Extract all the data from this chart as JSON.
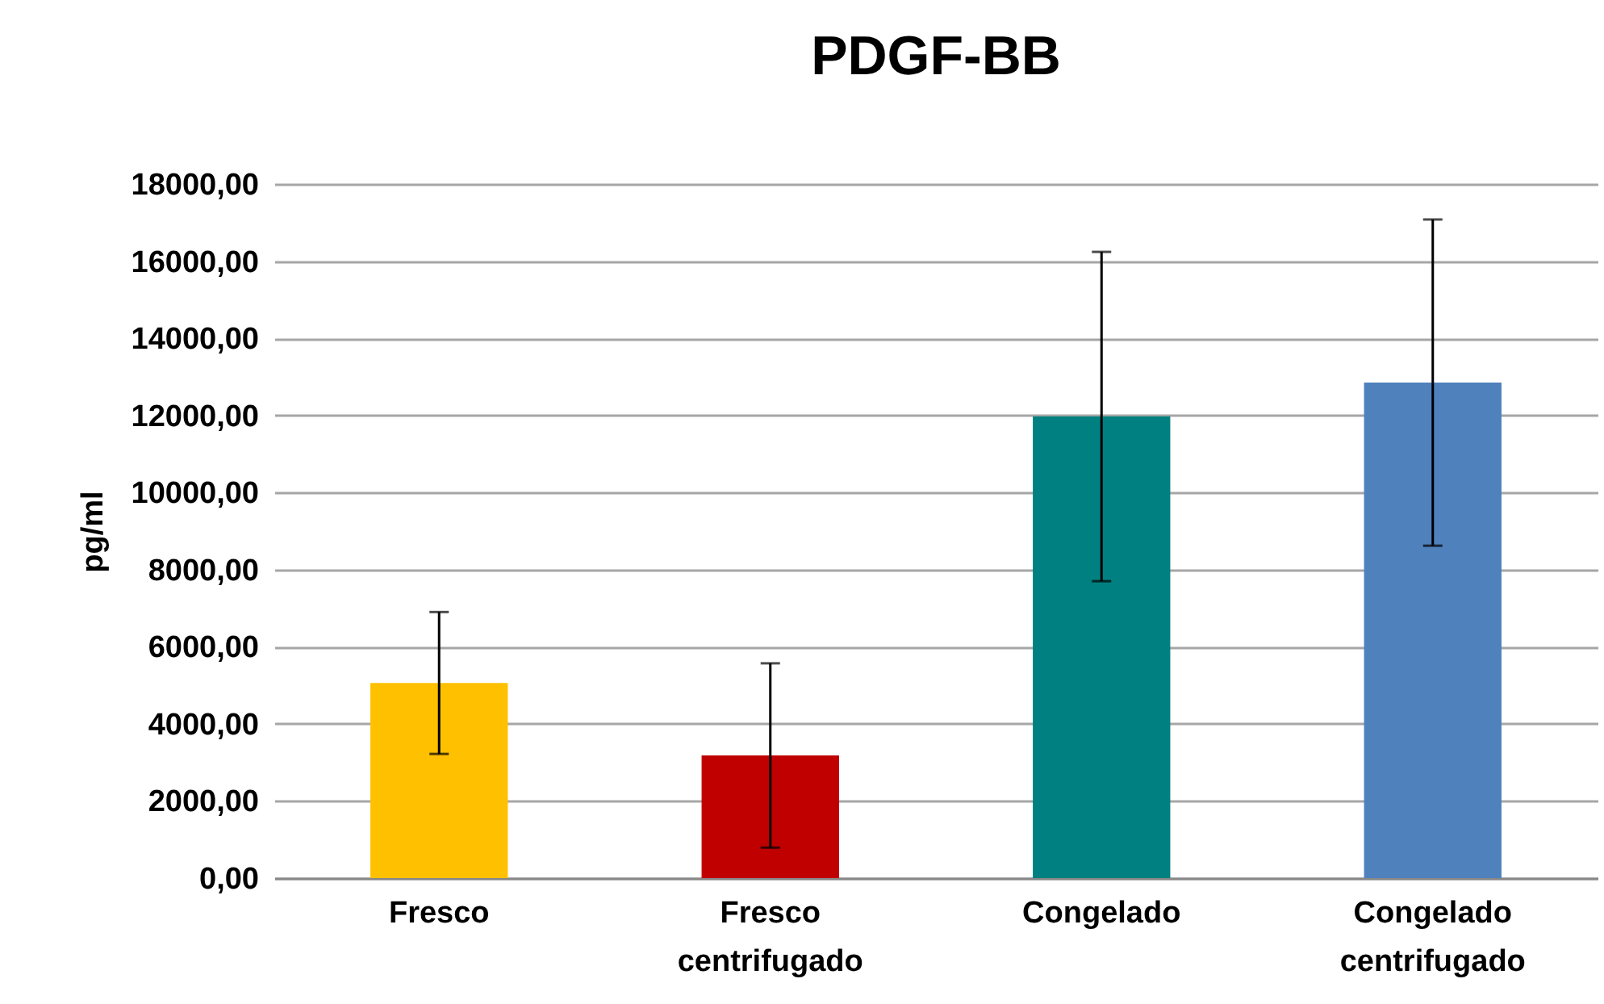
{
  "chart_data": {
    "type": "bar",
    "title": "PDGF-BB",
    "ylabel": "pg/ml",
    "categories": [
      "Fresco",
      "Fresco centrifugado",
      "Congelado",
      "Congelado centrifugado"
    ],
    "values": [
      5060,
      3180,
      11970,
      12850
    ],
    "colors": [
      "#ffc000",
      "#c00000",
      "#008080",
      "#4f81bd"
    ],
    "errors": [
      1840,
      2390,
      4270,
      4230
    ],
    "ylim": [
      0,
      18000
    ],
    "yticks": [
      {
        "value": 0,
        "label": "0,00"
      },
      {
        "value": 2000,
        "label": "2000,00"
      },
      {
        "value": 4000,
        "label": "4000,00"
      },
      {
        "value": 6000,
        "label": "6000,00"
      },
      {
        "value": 8000,
        "label": "8000,00"
      },
      {
        "value": 10000,
        "label": "10000,00"
      },
      {
        "value": 12000,
        "label": "12000,00"
      },
      {
        "value": 14000,
        "label": "14000,00"
      },
      {
        "value": 16000,
        "label": "16000,00"
      },
      {
        "value": 18000,
        "label": "18000,00"
      }
    ],
    "grid": "y",
    "legend": false
  }
}
